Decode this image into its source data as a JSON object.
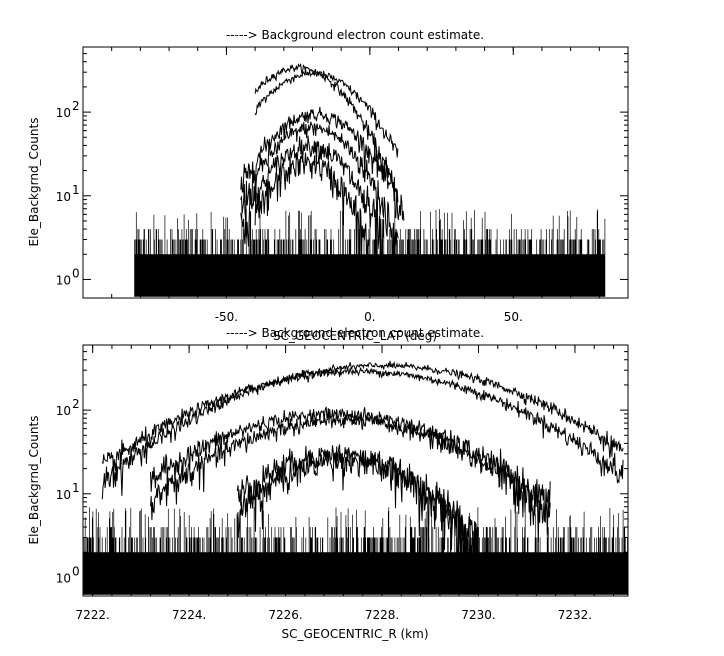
{
  "chart_data": [
    {
      "type": "line",
      "title": "-----> Background electron count estimate.",
      "xlabel": "SC_GEOCENTRIC_LAT (deg)",
      "ylabel": "Ele_Backgrnd_Counts",
      "xlim": [
        -100,
        90
      ],
      "ylim": [
        0.6,
        600
      ],
      "y_scale": "log",
      "grid": false,
      "x_ticks": [
        -50,
        0,
        50
      ],
      "x_tick_labels": [
        "-50.",
        "0.",
        "50."
      ],
      "y_ticks": [
        1,
        10,
        100
      ],
      "y_tick_labels": [
        "10",
        "10",
        "10"
      ],
      "y_tick_exponents": [
        "0",
        "1",
        "2"
      ],
      "noise_x_range": [
        -82,
        82
      ],
      "series": [
        {
          "peak_x": -25,
          "peak_y": 340,
          "width": 13,
          "x_range": [
            -40,
            10
          ]
        },
        {
          "peak_x": -20,
          "peak_y": 290,
          "width": 14,
          "x_range": [
            -40,
            10
          ]
        },
        {
          "peak_x": -19,
          "peak_y": 95,
          "width": 13,
          "x_range": [
            -45,
            12
          ]
        },
        {
          "peak_x": -20,
          "peak_y": 65,
          "width": 12,
          "x_range": [
            -45,
            10
          ]
        },
        {
          "peak_x": -21,
          "peak_y": 40,
          "width": 11,
          "x_range": [
            -45,
            5
          ]
        },
        {
          "peak_x": -22,
          "peak_y": 25,
          "width": 10,
          "x_range": [
            -40,
            0
          ]
        }
      ]
    },
    {
      "type": "line",
      "title": "-----> Background electron count estimate.",
      "xlabel": "SC_GEOCENTRIC_R (km)",
      "ylabel": "Ele_Backgrnd_Counts",
      "xlim": [
        7221.8,
        7233.1
      ],
      "ylim": [
        0.6,
        600
      ],
      "y_scale": "log",
      "grid": false,
      "x_ticks": [
        7222,
        7224,
        7226,
        7228,
        7230,
        7232
      ],
      "x_tick_labels": [
        "7222.",
        "7224.",
        "7226.",
        "7228.",
        "7230.",
        "7232."
      ],
      "y_ticks": [
        1,
        10,
        100
      ],
      "y_tick_labels": [
        "10",
        "10",
        "10"
      ],
      "y_tick_exponents": [
        "0",
        "1",
        "2"
      ],
      "noise_x_range": [
        7221.8,
        7233.1
      ],
      "series": [
        {
          "peak_x": 7228.0,
          "peak_y": 340,
          "width": 2.3,
          "x_range": [
            7222.2,
            7233.0
          ]
        },
        {
          "peak_x": 7227.5,
          "peak_y": 290,
          "width": 2.3,
          "x_range": [
            7222.2,
            7233.0
          ]
        },
        {
          "peak_x": 7227.0,
          "peak_y": 90,
          "width": 2.0,
          "x_range": [
            7223.2,
            7231.5
          ]
        },
        {
          "peak_x": 7227.2,
          "peak_y": 75,
          "width": 1.9,
          "x_range": [
            7223.2,
            7231.5
          ]
        },
        {
          "peak_x": 7227.0,
          "peak_y": 30,
          "width": 1.3,
          "x_range": [
            7225.0,
            7230.0
          ]
        },
        {
          "peak_x": 7227.2,
          "peak_y": 25,
          "width": 1.3,
          "x_range": [
            7225.0,
            7230.0
          ]
        }
      ]
    }
  ]
}
